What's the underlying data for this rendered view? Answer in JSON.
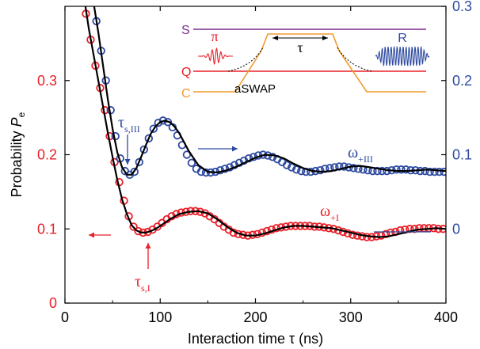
{
  "chart_data": {
    "type": "scatter",
    "xlabel": "Interaction time τ (ns)",
    "xlim": [
      0,
      400
    ],
    "x_ticks": [
      "0",
      "100",
      "200",
      "300",
      "400"
    ],
    "left_axis": {
      "label_main": "Probability ",
      "label_var": "P",
      "label_sub": "e",
      "color": "#e8202a",
      "ylim": [
        0,
        0.4
      ],
      "ticks": [
        {
          "label": "0",
          "value": 0
        },
        {
          "label": "0.1",
          "value": 0.1
        },
        {
          "label": "0.2",
          "value": 0.2
        },
        {
          "label": "0.3",
          "value": 0.3
        }
      ]
    },
    "right_axis": {
      "color": "#2d4aa0",
      "ticks": [
        {
          "label": "0",
          "value": 0.1
        },
        {
          "label": "0.1",
          "value": 0.2
        },
        {
          "label": "0.2",
          "value": 0.3
        },
        {
          "label": "0.3",
          "value": 0.4
        }
      ]
    },
    "series": [
      {
        "color": "#e8202a",
        "x": [
          22,
          27,
          32,
          37,
          42,
          47,
          52,
          57,
          62,
          67,
          72,
          77,
          82,
          87,
          92,
          97,
          102,
          107,
          112,
          117,
          122,
          127,
          132,
          137,
          142,
          147,
          152,
          157,
          162,
          167,
          172,
          177,
          182,
          187,
          192,
          197,
          202,
          207,
          212,
          217,
          222,
          227,
          232,
          237,
          242,
          247,
          252,
          257,
          262,
          267,
          272,
          277,
          282,
          287,
          292,
          297,
          302,
          307,
          312,
          317,
          322,
          327,
          332,
          337,
          342,
          347,
          352,
          357,
          362,
          367,
          372,
          377,
          382,
          387,
          392,
          397
        ],
        "y": [
          0.39,
          0.355,
          0.32,
          0.29,
          0.26,
          0.225,
          0.19,
          0.163,
          0.138,
          0.117,
          0.103,
          0.097,
          0.095,
          0.096,
          0.099,
          0.103,
          0.108,
          0.113,
          0.117,
          0.12,
          0.122,
          0.123,
          0.124,
          0.124,
          0.123,
          0.121,
          0.117,
          0.113,
          0.108,
          0.103,
          0.099,
          0.095,
          0.093,
          0.092,
          0.091,
          0.092,
          0.093,
          0.095,
          0.097,
          0.099,
          0.101,
          0.102,
          0.103,
          0.104,
          0.104,
          0.104,
          0.104,
          0.104,
          0.103,
          0.103,
          0.102,
          0.101,
          0.1,
          0.098,
          0.096,
          0.094,
          0.092,
          0.091,
          0.09,
          0.089,
          0.089,
          0.09,
          0.091,
          0.093,
          0.095,
          0.096,
          0.098,
          0.099,
          0.1,
          0.1,
          0.101,
          0.101,
          0.101,
          0.101,
          0.1,
          0.1
        ]
      },
      {
        "color": "#2d4aa0",
        "x": [
          28,
          33,
          38,
          43,
          48,
          53,
          58,
          63,
          68,
          73,
          78,
          83,
          88,
          93,
          98,
          103,
          108,
          113,
          118,
          123,
          128,
          133,
          138,
          143,
          148,
          153,
          158,
          163,
          168,
          173,
          178,
          183,
          188,
          193,
          198,
          203,
          208,
          213,
          218,
          223,
          228,
          233,
          238,
          243,
          248,
          253,
          258,
          263,
          268,
          273,
          278,
          283,
          288,
          293,
          298,
          303,
          308,
          313,
          318,
          323,
          328,
          333,
          338,
          343,
          348,
          353,
          358,
          363,
          368,
          373,
          378,
          383,
          388,
          393,
          398
        ],
        "y": [
          0.41,
          0.38,
          0.34,
          0.3,
          0.26,
          0.225,
          0.195,
          0.178,
          0.173,
          0.177,
          0.19,
          0.207,
          0.222,
          0.235,
          0.243,
          0.246,
          0.244,
          0.237,
          0.226,
          0.213,
          0.2,
          0.189,
          0.181,
          0.177,
          0.176,
          0.176,
          0.177,
          0.179,
          0.181,
          0.183,
          0.186,
          0.189,
          0.192,
          0.195,
          0.197,
          0.199,
          0.2,
          0.199,
          0.197,
          0.194,
          0.19,
          0.186,
          0.183,
          0.18,
          0.178,
          0.177,
          0.177,
          0.178,
          0.179,
          0.181,
          0.182,
          0.183,
          0.184,
          0.184,
          0.183,
          0.182,
          0.181,
          0.18,
          0.179,
          0.178,
          0.178,
          0.178,
          0.178,
          0.179,
          0.18,
          0.18,
          0.18,
          0.179,
          0.179,
          0.178,
          0.178,
          0.177,
          0.177,
          0.177,
          0.177
        ]
      }
    ],
    "fits": [
      {
        "color": "#000000",
        "x": [
          18,
          25,
          30,
          35,
          40,
          45,
          50,
          55,
          60,
          65,
          70,
          75,
          80,
          85,
          90,
          95,
          100,
          110,
          120,
          130,
          140,
          150,
          160,
          170,
          180,
          190,
          200,
          210,
          220,
          230,
          240,
          250,
          260,
          270,
          280,
          290,
          300,
          310,
          320,
          330,
          340,
          350,
          360,
          370,
          380,
          390,
          400
        ],
        "y": [
          0.43,
          0.37,
          0.335,
          0.3,
          0.265,
          0.23,
          0.197,
          0.166,
          0.14,
          0.12,
          0.105,
          0.098,
          0.095,
          0.095,
          0.097,
          0.1,
          0.104,
          0.113,
          0.12,
          0.123,
          0.124,
          0.121,
          0.113,
          0.103,
          0.095,
          0.091,
          0.091,
          0.094,
          0.098,
          0.102,
          0.104,
          0.104,
          0.103,
          0.102,
          0.101,
          0.098,
          0.095,
          0.092,
          0.09,
          0.089,
          0.09,
          0.093,
          0.096,
          0.099,
          0.1,
          0.101,
          0.1
        ]
      },
      {
        "color": "#000000",
        "x": [
          25,
          30,
          35,
          40,
          45,
          50,
          55,
          60,
          65,
          70,
          75,
          80,
          85,
          90,
          95,
          100,
          105,
          110,
          115,
          120,
          130,
          140,
          150,
          160,
          170,
          180,
          190,
          200,
          210,
          220,
          230,
          240,
          250,
          260,
          270,
          280,
          290,
          300,
          310,
          320,
          330,
          340,
          350,
          360,
          370,
          380,
          390,
          400
        ],
        "y": [
          0.44,
          0.405,
          0.365,
          0.32,
          0.275,
          0.235,
          0.203,
          0.183,
          0.173,
          0.173,
          0.182,
          0.197,
          0.213,
          0.228,
          0.238,
          0.244,
          0.246,
          0.244,
          0.238,
          0.229,
          0.205,
          0.186,
          0.177,
          0.176,
          0.179,
          0.184,
          0.19,
          0.196,
          0.2,
          0.199,
          0.195,
          0.188,
          0.182,
          0.178,
          0.177,
          0.178,
          0.181,
          0.184,
          0.185,
          0.183,
          0.181,
          0.179,
          0.178,
          0.178,
          0.179,
          0.18,
          0.179,
          0.178
        ]
      }
    ],
    "annotations": {
      "tau_s3": "τ",
      "tau_s3_sub": "s,III",
      "tau_s1": "τ",
      "tau_s1_sub": "s,I",
      "omega_3": "ω",
      "omega_3_sub": "+III",
      "omega_1": "ω",
      "omega_1_sub": "+I"
    },
    "inset": {
      "labels": {
        "S": "S",
        "Q": "Q",
        "C": "C",
        "pi": "π",
        "tau": "τ",
        "R": "R",
        "aswap": "aSWAP"
      },
      "colors": {
        "S": "#7b2d8e",
        "Q": "#e8202a",
        "C": "#f29a2e",
        "pi": "#e8202a",
        "R": "#2d4aa0"
      }
    }
  }
}
